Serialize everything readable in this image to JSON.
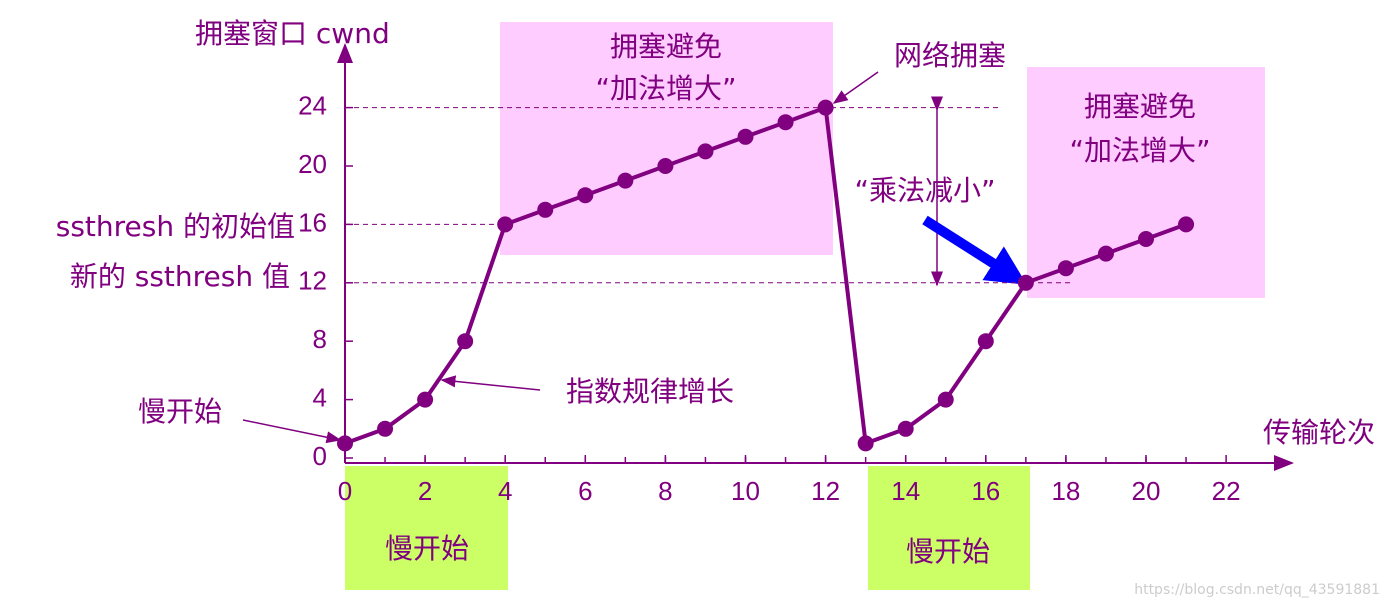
{
  "chart_data": {
    "type": "line",
    "y_label": "拥塞窗口 cwnd",
    "x_label": "传输轮次",
    "x": [
      0,
      1,
      2,
      3,
      4,
      5,
      6,
      7,
      8,
      9,
      10,
      11,
      12,
      13,
      14,
      15,
      16,
      17,
      18,
      19,
      20,
      21
    ],
    "series": [
      {
        "color": "#800080",
        "values": [
          1,
          2,
          4,
          8,
          16,
          17,
          18,
          19,
          20,
          21,
          22,
          23,
          24,
          1,
          2,
          4,
          8,
          12,
          13,
          14,
          15,
          16
        ]
      }
    ],
    "xlim": [
      0,
      23.5
    ],
    "ylim": [
      0,
      28
    ],
    "xticks": [
      0,
      2,
      4,
      6,
      8,
      10,
      12,
      14,
      16,
      18,
      20,
      22
    ],
    "yticks": [
      0,
      4,
      8,
      12,
      16,
      20,
      24
    ],
    "annotations": [
      "拥塞避免",
      "“加法增大”",
      "网络拥塞",
      "“乘法减小”",
      "指数规律增长",
      "慢开始",
      "慢开始",
      "慢开始",
      "ssthresh 的初始值",
      "新的 ssthresh 值",
      "拥塞避免",
      "“加法增大”"
    ]
  },
  "watermark": "https://blog.csdn.net/qq_43591881"
}
